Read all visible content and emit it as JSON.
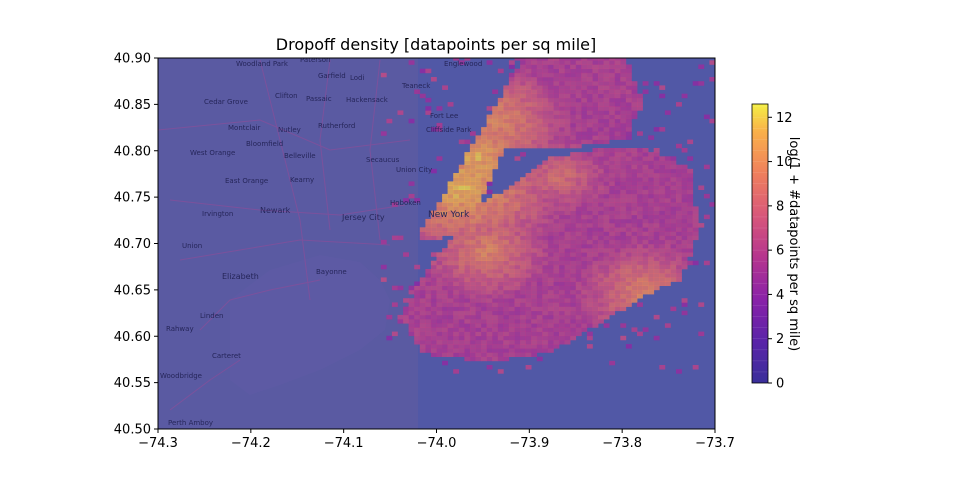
{
  "chart_data": {
    "type": "heatmap",
    "title": "Dropoff density [datapoints per sq mile]",
    "xlabel": "",
    "ylabel": "",
    "xlim": [
      -74.3,
      -73.7
    ],
    "ylim": [
      40.5,
      40.9
    ],
    "x_ticks": [
      -74.3,
      -74.2,
      -74.1,
      -74.0,
      -73.9,
      -73.8,
      -73.7
    ],
    "x_tick_labels": [
      "−74.3",
      "−74.2",
      "−74.1",
      "−74.0",
      "−73.9",
      "−73.8",
      "−73.7"
    ],
    "y_ticks": [
      40.5,
      40.55,
      40.6,
      40.65,
      40.7,
      40.75,
      40.8,
      40.85,
      40.9
    ],
    "y_tick_labels": [
      "40.50",
      "40.55",
      "40.60",
      "40.65",
      "40.70",
      "40.75",
      "40.80",
      "40.85",
      "40.90"
    ],
    "colorbar": {
      "label": "log(1 + #datapoints per sq mile)",
      "range": [
        0,
        12.6
      ],
      "ticks": [
        0,
        2,
        4,
        6,
        8,
        10,
        12
      ],
      "tick_labels": [
        "0",
        "2",
        "4",
        "6",
        "8",
        "10",
        "12"
      ],
      "colormap": "plasma"
    },
    "hotspots": [
      {
        "lon": -73.975,
        "lat": 40.76,
        "value": 12
      },
      {
        "lon": -73.96,
        "lat": 40.79,
        "value": 11.5
      },
      {
        "lon": -73.94,
        "lat": 40.83,
        "value": 10.5
      },
      {
        "lon": -73.95,
        "lat": 40.69,
        "value": 10
      },
      {
        "lon": -73.92,
        "lat": 40.74,
        "value": 9
      },
      {
        "lon": -73.86,
        "lat": 40.76,
        "value": 8
      },
      {
        "lon": -73.78,
        "lat": 40.645,
        "value": 10
      },
      {
        "lon": -73.87,
        "lat": 40.77,
        "value": 9
      }
    ]
  },
  "colors": {
    "background_low": "#4a56aa",
    "accent_high": "#f8d95a",
    "mid": "#e05c8a"
  },
  "map_labels": {
    "new_york": "New York",
    "newark": "Newark",
    "jersey_city": "Jersey City",
    "elizabeth": "Elizabeth",
    "paterson": "Paterson",
    "clifton": "Clifton",
    "bayonne": "Bayonne",
    "hoboken": "Hoboken",
    "kearny": "Kearny",
    "linden": "Linden",
    "rahway": "Rahway",
    "carteret": "Carteret",
    "perth_amboy": "Perth Amboy",
    "west_orange": "West Orange",
    "east_orange": "East Orange",
    "union": "Union",
    "montclair": "Montclair",
    "nutley": "Nutley",
    "rutherford": "Rutherford",
    "secaucus": "Secaucus",
    "fort_lee": "Fort Lee",
    "hackensack": "Hackensack",
    "englewood": "Englewood",
    "cedar_grove": "Cedar Grove",
    "woodland_park": "Woodland Park",
    "garfield": "Garfield",
    "lodi": "Lodi",
    "passaic": "Passaic",
    "irvington": "Irvington",
    "woodbridge": "Woodbridge",
    "union_city": "Union City",
    "cliffside_park": "Cliffside Park",
    "teaneck": "Teaneck",
    "bloomfield": "Bloomfield",
    "belleville": "Belleville"
  }
}
